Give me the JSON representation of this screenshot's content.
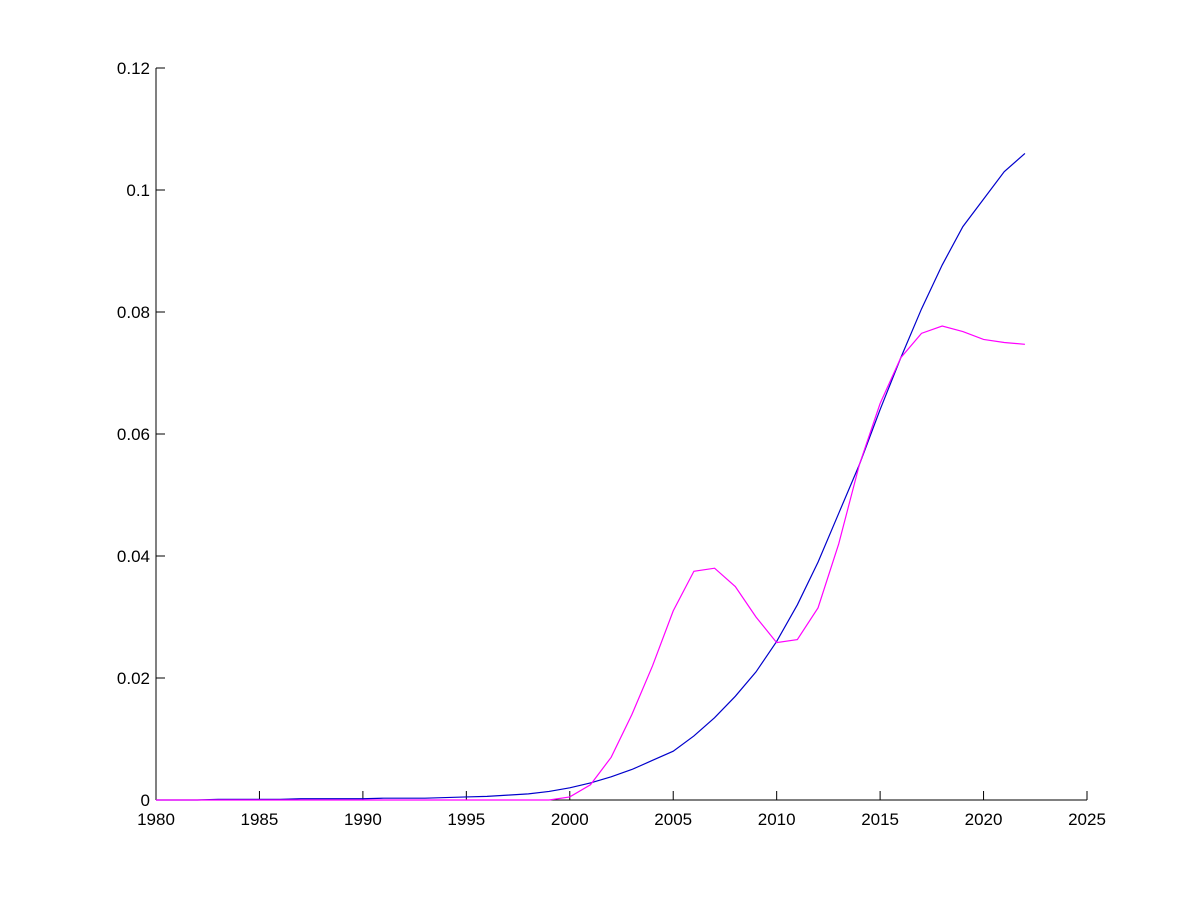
{
  "chart_data": {
    "type": "line",
    "x": [
      1980,
      1981,
      1982,
      1983,
      1984,
      1985,
      1986,
      1987,
      1988,
      1989,
      1990,
      1991,
      1992,
      1993,
      1994,
      1995,
      1996,
      1997,
      1998,
      1999,
      2000,
      2001,
      2002,
      2003,
      2004,
      2005,
      2006,
      2007,
      2008,
      2009,
      2010,
      2011,
      2012,
      2013,
      2014,
      2015,
      2016,
      2017,
      2018,
      2019,
      2020,
      2021,
      2022
    ],
    "series": [
      {
        "color": "#0000cc",
        "values": [
          0,
          0,
          0,
          0.0001,
          0.0001,
          0.0001,
          0.0001,
          0.0002,
          0.0002,
          0.0002,
          0.0002,
          0.0003,
          0.0003,
          0.0003,
          0.0004,
          0.0005,
          0.0006,
          0.0008,
          0.001,
          0.0014,
          0.002,
          0.0028,
          0.0038,
          0.005,
          0.0065,
          0.008,
          0.0105,
          0.0135,
          0.017,
          0.021,
          0.026,
          0.032,
          0.039,
          0.047,
          0.055,
          0.064,
          0.0725,
          0.0805,
          0.0877,
          0.094,
          0.0985,
          0.103,
          0.106
        ]
      },
      {
        "color": "#ff00ff",
        "values": [
          0,
          0,
          0,
          0,
          0,
          0,
          0,
          0,
          0,
          0,
          0,
          0,
          0,
          0,
          0,
          0,
          0,
          0,
          0,
          0,
          0.0005,
          0.0025,
          0.007,
          0.014,
          0.022,
          0.031,
          0.0375,
          0.038,
          0.035,
          0.03,
          0.0258,
          0.0263,
          0.0315,
          0.042,
          0.055,
          0.065,
          0.0725,
          0.0765,
          0.0777,
          0.0768,
          0.0755,
          0.075,
          0.0747
        ]
      }
    ],
    "xlim": [
      1980,
      2025
    ],
    "xticks": [
      1980,
      1985,
      1990,
      1995,
      2000,
      2005,
      2010,
      2015,
      2020,
      2025
    ],
    "ylim": [
      0,
      0.12
    ],
    "yticks": [
      0,
      0.02,
      0.04,
      0.06,
      0.08,
      0.1,
      0.12
    ]
  }
}
